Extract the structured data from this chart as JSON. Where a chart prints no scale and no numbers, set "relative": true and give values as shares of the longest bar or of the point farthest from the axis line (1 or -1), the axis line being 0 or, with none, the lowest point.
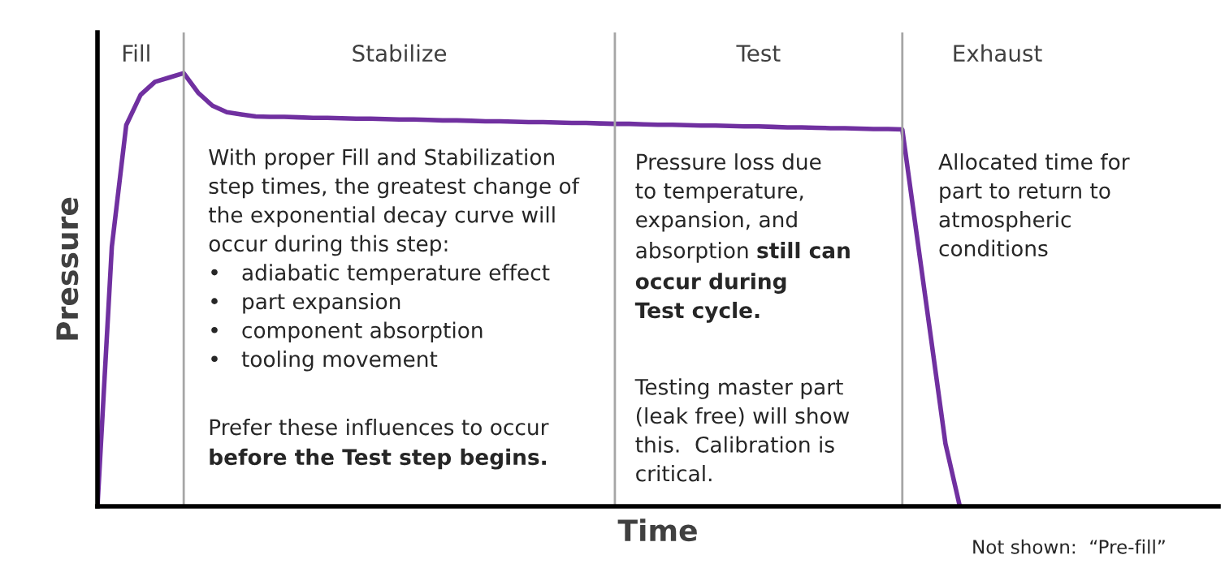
{
  "chart_data": {
    "type": "line",
    "relative": true,
    "xlabel": "Time",
    "ylabel": "Pressure",
    "categories": [
      null,
      null,
      null,
      null,
      null,
      null,
      null,
      null,
      null,
      null,
      null,
      null,
      null,
      null,
      null,
      null,
      null,
      null,
      null,
      null,
      null,
      null,
      null,
      null,
      null,
      null,
      null,
      null,
      null,
      null,
      null,
      null,
      null,
      null,
      null,
      null,
      null,
      null,
      null,
      null,
      null,
      null,
      null,
      null,
      null,
      null,
      null,
      null,
      null,
      null,
      null,
      null,
      null,
      null,
      null,
      null,
      null,
      null,
      null,
      null,
      null,
      null,
      null,
      null,
      null,
      null,
      null,
      null,
      null,
      null,
      null,
      null,
      null,
      null,
      null,
      null,
      null,
      null,
      null
    ],
    "marker": "none",
    "line_style": "solid",
    "series": [
      {
        "color": "#7030a0",
        "values": [
          0,
          0.6,
          0.88,
          0.95,
          0.98,
          0.99,
          1.0,
          0.955,
          0.925,
          0.91,
          0.905,
          0.9,
          0.899,
          0.899,
          0.898,
          0.897,
          0.897,
          0.896,
          0.895,
          0.895,
          0.894,
          0.893,
          0.893,
          0.892,
          0.891,
          0.891,
          0.89,
          0.889,
          0.889,
          0.888,
          0.887,
          0.887,
          0.886,
          0.885,
          0.885,
          0.884,
          0.883,
          0.883,
          0.882,
          0.881,
          0.881,
          0.88,
          0.879,
          0.879,
          0.878,
          0.877,
          0.877,
          0.876,
          0.875,
          0.875,
          0.874,
          0.873,
          0.873,
          0.872,
          0.871,
          0.871,
          0.87,
          0.628,
          0.387,
          0.145,
          0,
          null,
          null,
          null,
          null,
          null,
          null,
          null,
          null,
          null,
          null,
          null,
          null,
          null,
          null,
          null,
          null,
          null,
          null
        ]
      }
    ],
    "grid": "x",
    "annotations": [
      "Fill",
      "Stabilize",
      "Test",
      "Exhaust",
      "With proper Fill and Stabilization\nstep times, the greatest change of\nthe exponential decay curve will\noccur during this step:\n•   adiabatic temperature effect\n•   part expansion\n•   component absorption\n•   tooling movement",
      "Prefer these influences to occur",
      "before the Test step begins.",
      "Pressure loss due\nto temperature,\nexpansion, and",
      "absorption",
      "still can",
      "occur during\nTest cycle.",
      "Testing master part\n(leak free) will show\nthis.  Calibration is\ncritical.",
      "Allocated time for\npart to return to\natmospheric\nconditions",
      "Not shown:  “Pre-fill”"
    ]
  }
}
